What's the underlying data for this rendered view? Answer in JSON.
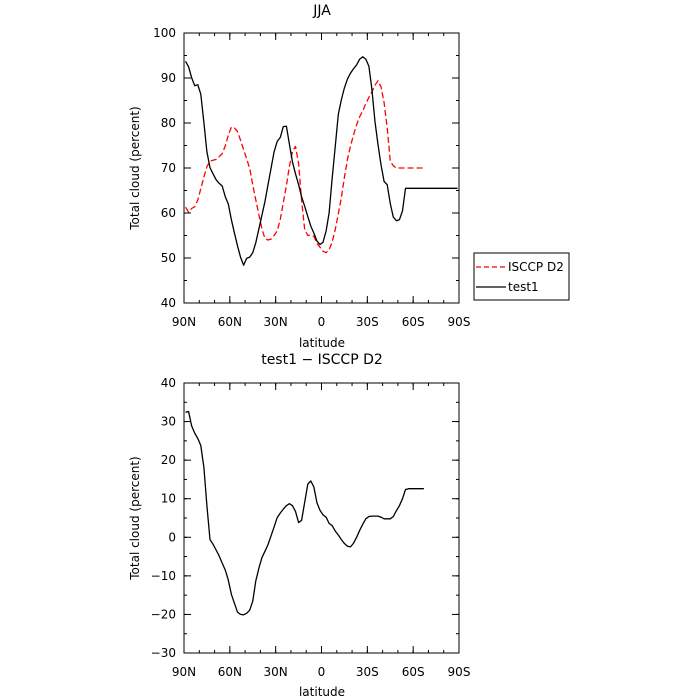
{
  "chart_data": [
    {
      "type": "line",
      "title": "JJA",
      "xlabel": "latitude",
      "ylabel": "Total cloud (percent)",
      "xlim": [
        90,
        -90
      ],
      "ylim": [
        40,
        100
      ],
      "xticks": [
        90,
        60,
        30,
        0,
        -30,
        -60,
        -90
      ],
      "xtick_labels": [
        "90N",
        "60N",
        "30N",
        "0",
        "30S",
        "60S",
        "90S"
      ],
      "yticks": [
        40,
        50,
        60,
        70,
        80,
        90,
        100
      ],
      "ytick_labels": [
        "40",
        "50",
        "60",
        "70",
        "80",
        "90",
        "100"
      ],
      "grid": false,
      "legend_position": "right, outside plot",
      "series": [
        {
          "name": "ISCCP D2",
          "color": "#ff0000",
          "dash": "dashed",
          "x": [
            89,
            87,
            85,
            83,
            81,
            79,
            77,
            75,
            73,
            71,
            69,
            67,
            65,
            63,
            61,
            59,
            57,
            55,
            53,
            51,
            49,
            47,
            45,
            43,
            41,
            39,
            37,
            35,
            33,
            31,
            29,
            27,
            25,
            23,
            21,
            19,
            17,
            15,
            13,
            11,
            9,
            7,
            5,
            3,
            1,
            -1,
            -3,
            -5,
            -7,
            -9,
            -11,
            -13,
            -15,
            -17,
            -19,
            -21,
            -23,
            -25,
            -27,
            -29,
            -31,
            -33,
            -35,
            -37,
            -39,
            -41,
            -43,
            -45,
            -47,
            -49,
            -51,
            -53,
            -55,
            -57,
            -59,
            -61,
            -63,
            -65,
            -67
          ],
          "y": [
            61.3,
            60.2,
            61.0,
            61.4,
            62.9,
            65.4,
            68.0,
            70.3,
            71.5,
            71.7,
            71.9,
            72.5,
            73.2,
            74.9,
            77.3,
            79.1,
            78.9,
            78.1,
            76.2,
            74.1,
            72.1,
            69.9,
            66.2,
            62.9,
            59.6,
            56.5,
            54.3,
            54.0,
            54.2,
            55.0,
            56.0,
            58.6,
            62.3,
            66.1,
            70.4,
            73.7,
            74.8,
            71.0,
            62.8,
            56.3,
            55.0,
            55.1,
            54.8,
            53.3,
            52.4,
            51.5,
            51.2,
            51.8,
            53.6,
            56.4,
            59.8,
            63.5,
            67.9,
            71.9,
            74.9,
            77.4,
            79.6,
            81.4,
            82.7,
            84.3,
            85.7,
            86.9,
            88.4,
            89.4,
            88.0,
            84.5,
            79.0,
            71.5,
            70.5,
            70.0,
            70.0,
            70.0,
            70.0,
            70.0,
            70.0,
            70.0,
            70.0,
            70.0,
            70.0
          ]
        },
        {
          "name": "test1",
          "color": "#000000",
          "dash": "solid",
          "x": [
            89,
            87,
            85,
            83,
            81,
            79,
            77,
            75,
            73,
            71,
            69,
            67,
            65,
            63,
            61,
            59,
            57,
            55,
            53,
            51,
            49,
            47,
            45,
            43,
            41,
            39,
            37,
            35,
            33,
            31,
            29,
            27,
            25,
            23,
            21,
            19,
            17,
            15,
            13,
            11,
            9,
            7,
            5,
            3,
            1,
            -1,
            -3,
            -5,
            -7,
            -9,
            -11,
            -13,
            -15,
            -17,
            -19,
            -21,
            -23,
            -25,
            -27,
            -29,
            -31,
            -33,
            -35,
            -37,
            -39,
            -41,
            -43,
            -45,
            -47,
            -49,
            -51,
            -53,
            -55,
            -57,
            -59,
            -61,
            -63,
            -65,
            -67,
            -69,
            -71,
            -73,
            -75,
            -77,
            -79,
            -81,
            -83,
            -85,
            -87,
            -89
          ],
          "y": [
            93.7,
            92.5,
            90.1,
            88.3,
            88.5,
            86.4,
            80.1,
            73.6,
            70.1,
            68.7,
            67.4,
            66.6,
            66.0,
            63.6,
            62.0,
            58.5,
            55.6,
            52.7,
            50.2,
            48.4,
            49.9,
            50.2,
            51.2,
            53.4,
            56.5,
            59.5,
            62.6,
            66.3,
            70.0,
            73.6,
            75.9,
            76.8,
            79.2,
            79.3,
            75.3,
            71.3,
            68.7,
            66.3,
            63.6,
            61.5,
            59.2,
            57.1,
            55.5,
            53.8,
            53.0,
            53.5,
            56.0,
            60.0,
            67.8,
            74.9,
            81.9,
            85.2,
            87.8,
            89.8,
            91.1,
            92.1,
            92.9,
            94.2,
            94.7,
            94.2,
            92.6,
            87.5,
            80.3,
            75.2,
            70.6,
            67.0,
            66.3,
            62.1,
            59.1,
            58.3,
            58.5,
            60.5,
            65.5,
            65.5,
            65.5,
            65.5,
            65.5,
            65.5,
            65.5,
            65.5,
            65.5,
            65.5,
            65.5,
            65.5,
            65.5,
            65.5,
            65.5,
            65.5,
            65.5,
            65.5
          ]
        }
      ]
    },
    {
      "type": "line",
      "title": "test1 − ISCCP D2",
      "xlabel": "latitude",
      "ylabel": "Total cloud (percent)",
      "xlim": [
        90,
        -90
      ],
      "ylim": [
        -30,
        40
      ],
      "xticks": [
        90,
        60,
        30,
        0,
        -30,
        -60,
        -90
      ],
      "xtick_labels": [
        "90N",
        "60N",
        "30N",
        "0",
        "30S",
        "60S",
        "90S"
      ],
      "yticks": [
        -30,
        -20,
        -10,
        0,
        10,
        20,
        30,
        40
      ],
      "ytick_labels": [
        "−30",
        "−20",
        "−10",
        "0",
        "10",
        "20",
        "30",
        "40"
      ],
      "grid": false,
      "series": [
        {
          "name": "",
          "color": "#000000",
          "dash": "solid",
          "x": [
            89,
            87,
            85,
            83,
            81,
            79,
            77,
            75,
            73,
            71,
            69,
            67,
            65,
            63,
            61,
            59,
            57,
            55,
            53,
            51,
            49,
            47,
            45,
            43,
            41,
            39,
            37,
            35,
            33,
            31,
            29,
            27,
            25,
            23,
            21,
            19,
            17,
            15,
            13,
            11,
            9,
            7,
            5,
            3,
            1,
            -1,
            -3,
            -5,
            -7,
            -9,
            -11,
            -13,
            -15,
            -17,
            -19,
            -21,
            -23,
            -25,
            -27,
            -29,
            -31,
            -33,
            -35,
            -37,
            -39,
            -41,
            -43,
            -45,
            -47,
            -49,
            -51,
            -53,
            -55,
            -57,
            -59,
            -61,
            -63,
            -65,
            -67
          ],
          "y": [
            32.4,
            32.6,
            28.9,
            27.0,
            25.6,
            23.8,
            18.1,
            8.2,
            -0.6,
            -1.8,
            -3.3,
            -4.8,
            -6.7,
            -8.5,
            -11.1,
            -14.8,
            -17.1,
            -19.4,
            -20.0,
            -20.1,
            -19.7,
            -18.9,
            -16.5,
            -11.3,
            -8.0,
            -5.3,
            -3.6,
            -1.9,
            0.4,
            2.7,
            5.1,
            6.3,
            7.3,
            8.2,
            8.7,
            8.2,
            6.7,
            3.8,
            4.4,
            9.1,
            13.8,
            14.6,
            13.0,
            9.0,
            7.0,
            5.8,
            5.2,
            3.6,
            3.0,
            1.6,
            0.6,
            -0.6,
            -1.6,
            -2.3,
            -2.5,
            -1.5,
            0.0,
            1.8,
            3.4,
            4.8,
            5.4,
            5.5,
            5.5,
            5.5,
            5.2,
            4.8,
            4.8,
            4.8,
            5.4,
            6.9,
            8.2,
            10.0,
            12.4,
            12.6,
            12.6,
            12.6,
            12.6,
            12.6,
            12.6
          ]
        }
      ]
    }
  ]
}
